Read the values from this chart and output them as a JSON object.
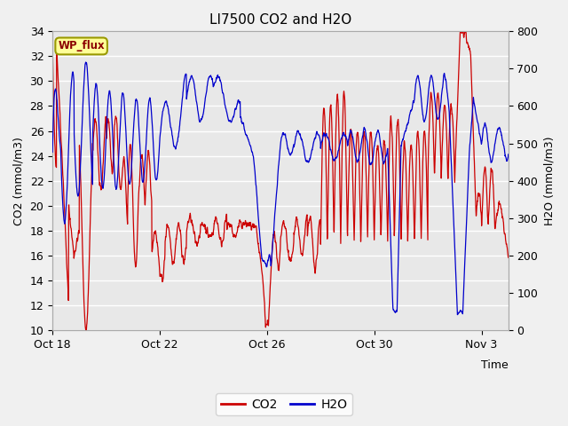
{
  "title": "LI7500 CO2 and H2O",
  "xlabel": "Time",
  "ylabel_left": "CO2 (mmol/m3)",
  "ylabel_right": "H2O (mmol/m3)",
  "ylim_left": [
    10,
    34
  ],
  "ylim_right": [
    0,
    800
  ],
  "yticks_left": [
    10,
    12,
    14,
    16,
    18,
    20,
    22,
    24,
    26,
    28,
    30,
    32,
    34
  ],
  "yticks_right": [
    0,
    100,
    200,
    300,
    400,
    500,
    600,
    700,
    800
  ],
  "xtick_positions": [
    0,
    4,
    8,
    12,
    16
  ],
  "xtick_labels": [
    "Oct 18",
    "Oct 22",
    "Oct 26",
    "Oct 30",
    "Nov 3"
  ],
  "xlim": [
    0,
    17
  ],
  "plot_bg_color": "#e8e8e8",
  "fig_bg_color": "#f0f0f0",
  "co2_color": "#cc0000",
  "h2o_color": "#0000cc",
  "legend_co2": "CO2",
  "legend_h2o": "H2O",
  "annotation_text": "WP_flux",
  "annotation_bg": "#ffff99",
  "annotation_border": "#999900",
  "title_fontsize": 11,
  "axis_fontsize": 9,
  "tick_fontsize": 9,
  "line_width": 0.9,
  "figsize": [
    6.4,
    4.8
  ],
  "dpi": 100
}
